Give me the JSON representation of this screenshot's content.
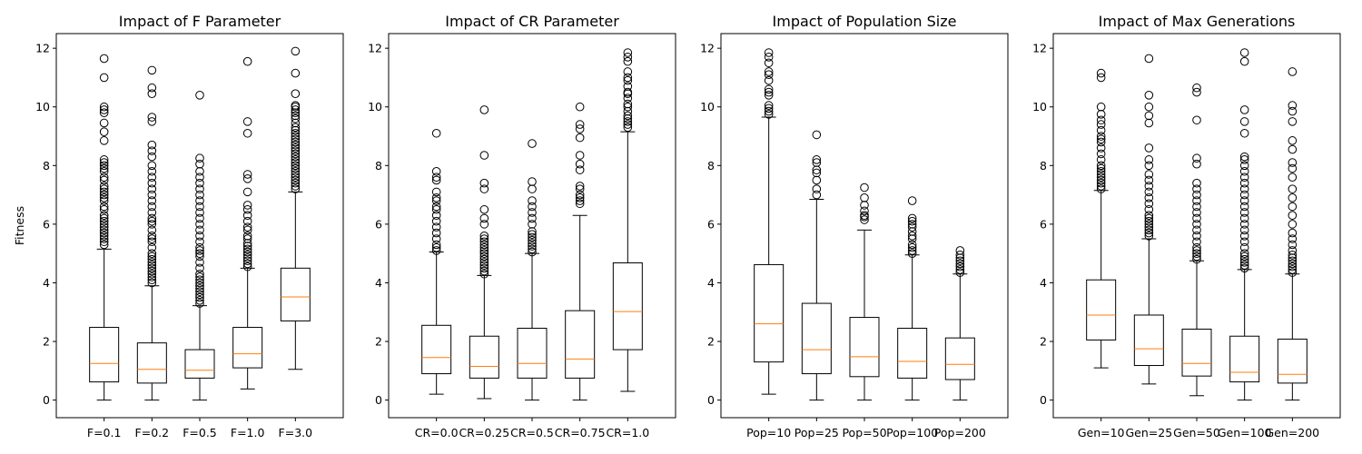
{
  "chart_data": [
    {
      "type": "boxplot",
      "title": "Impact of F Parameter",
      "ylabel": "Fitness",
      "ylim": [
        -0.6,
        12.5
      ],
      "yticks": [
        0,
        2,
        4,
        6,
        8,
        10,
        12
      ],
      "categories": [
        "F=0.1",
        "F=0.2",
        "F=0.5",
        "F=1.0",
        "F=3.0"
      ],
      "boxes": [
        {
          "min": 0.0,
          "q1": 0.62,
          "median": 1.25,
          "q3": 2.48,
          "max": 5.15,
          "outliers": [
            5.3,
            5.4,
            5.5,
            5.6,
            5.7,
            5.8,
            5.9,
            6.0,
            6.1,
            6.2,
            6.3,
            6.5,
            6.6,
            6.8,
            6.9,
            7.0,
            7.1,
            7.2,
            7.3,
            7.5,
            7.6,
            7.8,
            7.9,
            8.0,
            8.1,
            8.2,
            8.85,
            9.15,
            9.45,
            9.8,
            9.9,
            10.0,
            11.0,
            11.65
          ]
        },
        {
          "min": 0.0,
          "q1": 0.58,
          "median": 1.05,
          "q3": 1.95,
          "max": 3.9,
          "outliers": [
            4.0,
            4.1,
            4.2,
            4.3,
            4.4,
            4.5,
            4.6,
            4.7,
            4.8,
            4.9,
            5.0,
            5.2,
            5.4,
            5.5,
            5.6,
            5.8,
            6.0,
            6.1,
            6.2,
            6.4,
            6.6,
            6.8,
            7.0,
            7.2,
            7.4,
            7.6,
            7.8,
            8.0,
            8.3,
            8.5,
            8.7,
            9.5,
            9.65,
            10.45,
            10.65,
            11.25
          ]
        },
        {
          "min": 0.0,
          "q1": 0.75,
          "median": 1.02,
          "q3": 1.72,
          "max": 3.22,
          "outliers": [
            3.3,
            3.4,
            3.5,
            3.6,
            3.7,
            3.8,
            3.9,
            4.0,
            4.1,
            4.2,
            4.3,
            4.5,
            4.7,
            4.9,
            5.0,
            5.1,
            5.2,
            5.4,
            5.6,
            5.8,
            6.0,
            6.2,
            6.4,
            6.6,
            6.8,
            7.0,
            7.2,
            7.4,
            7.6,
            7.8,
            8.05,
            8.25,
            10.4
          ]
        },
        {
          "min": 0.38,
          "q1": 1.1,
          "median": 1.58,
          "q3": 2.48,
          "max": 4.5,
          "outliers": [
            4.55,
            4.65,
            4.75,
            4.85,
            4.95,
            5.05,
            5.15,
            5.25,
            5.35,
            5.5,
            5.6,
            5.8,
            5.9,
            6.1,
            6.3,
            6.5,
            6.65,
            7.1,
            7.55,
            7.7,
            9.1,
            9.5,
            11.55
          ]
        },
        {
          "min": 1.05,
          "q1": 2.7,
          "median": 3.52,
          "q3": 4.5,
          "max": 7.1,
          "outliers": [
            7.2,
            7.3,
            7.4,
            7.5,
            7.6,
            7.7,
            7.8,
            7.9,
            8.0,
            8.1,
            8.2,
            8.3,
            8.4,
            8.5,
            8.6,
            8.7,
            8.8,
            8.9,
            9.0,
            9.1,
            9.2,
            9.3,
            9.45,
            9.6,
            9.7,
            9.8,
            9.9,
            10.0,
            10.05,
            10.45,
            11.15,
            11.9
          ]
        }
      ]
    },
    {
      "type": "boxplot",
      "title": "Impact of CR Parameter",
      "ylabel": "",
      "ylim": [
        -0.6,
        12.5
      ],
      "yticks": [
        0,
        2,
        4,
        6,
        8,
        10,
        12
      ],
      "categories": [
        "CR=0.0",
        "CR=0.25",
        "CR=0.5",
        "CR=0.75",
        "CR=1.0"
      ],
      "boxes": [
        {
          "min": 0.2,
          "q1": 0.9,
          "median": 1.45,
          "q3": 2.55,
          "max": 5.05,
          "outliers": [
            5.1,
            5.2,
            5.3,
            5.5,
            5.7,
            5.9,
            6.1,
            6.3,
            6.5,
            6.6,
            6.8,
            6.9,
            7.1,
            7.5,
            7.6,
            7.8,
            9.1
          ]
        },
        {
          "min": 0.05,
          "q1": 0.75,
          "median": 1.15,
          "q3": 2.18,
          "max": 4.25,
          "outliers": [
            4.3,
            4.4,
            4.5,
            4.6,
            4.7,
            4.8,
            4.9,
            5.0,
            5.1,
            5.2,
            5.3,
            5.4,
            5.5,
            5.6,
            6.0,
            6.2,
            6.5,
            7.2,
            7.4,
            8.35,
            9.9
          ]
        },
        {
          "min": 0.0,
          "q1": 0.75,
          "median": 1.25,
          "q3": 2.45,
          "max": 5.0,
          "outliers": [
            5.05,
            5.15,
            5.25,
            5.35,
            5.45,
            5.55,
            5.65,
            5.75,
            6.0,
            6.2,
            6.4,
            6.6,
            6.8,
            7.2,
            7.45,
            8.75
          ]
        },
        {
          "min": 0.0,
          "q1": 0.75,
          "median": 1.4,
          "q3": 3.05,
          "max": 6.3,
          "outliers": [
            6.7,
            6.8,
            6.9,
            7.0,
            7.2,
            7.3,
            7.85,
            8.05,
            8.35,
            8.95,
            9.25,
            9.4,
            10.0
          ]
        },
        {
          "min": 0.3,
          "q1": 1.72,
          "median": 3.02,
          "q3": 4.68,
          "max": 9.15,
          "outliers": [
            9.3,
            9.4,
            9.5,
            9.6,
            9.7,
            9.85,
            10.0,
            10.1,
            10.3,
            10.45,
            10.5,
            10.7,
            10.9,
            11.0,
            11.2,
            11.55,
            11.7,
            11.85
          ]
        }
      ]
    },
    {
      "type": "boxplot",
      "title": "Impact of Population Size",
      "ylabel": "",
      "ylim": [
        -0.6,
        12.5
      ],
      "yticks": [
        0,
        2,
        4,
        6,
        8,
        10,
        12
      ],
      "categories": [
        "Pop=10",
        "Pop=25",
        "Pop=50",
        "Pop=100",
        "Pop=200"
      ],
      "boxes": [
        {
          "min": 0.2,
          "q1": 1.3,
          "median": 2.6,
          "q3": 4.62,
          "max": 9.65,
          "outliers": [
            9.75,
            9.85,
            9.95,
            10.05,
            10.4,
            10.5,
            10.6,
            10.9,
            11.1,
            11.2,
            11.5,
            11.7,
            11.85
          ]
        },
        {
          "min": 0.0,
          "q1": 0.9,
          "median": 1.72,
          "q3": 3.3,
          "max": 6.85,
          "outliers": [
            7.0,
            7.2,
            7.5,
            7.75,
            7.85,
            8.1,
            8.2,
            9.05
          ]
        },
        {
          "min": 0.0,
          "q1": 0.8,
          "median": 1.48,
          "q3": 2.82,
          "max": 5.8,
          "outliers": [
            6.15,
            6.25,
            6.3,
            6.45,
            6.65,
            6.9,
            7.25
          ]
        },
        {
          "min": 0.0,
          "q1": 0.75,
          "median": 1.32,
          "q3": 2.45,
          "max": 4.95,
          "outliers": [
            5.0,
            5.1,
            5.2,
            5.3,
            5.5,
            5.6,
            5.75,
            5.9,
            6.0,
            6.1,
            6.2,
            6.8
          ]
        },
        {
          "min": 0.0,
          "q1": 0.7,
          "median": 1.22,
          "q3": 2.12,
          "max": 4.3,
          "outliers": [
            4.35,
            4.45,
            4.55,
            4.65,
            4.75,
            4.85,
            4.95,
            5.1
          ]
        }
      ]
    },
    {
      "type": "boxplot",
      "title": "Impact of Max Generations",
      "ylabel": "",
      "ylim": [
        -0.6,
        12.5
      ],
      "yticks": [
        0,
        2,
        4,
        6,
        8,
        10,
        12
      ],
      "categories": [
        "Gen=10",
        "Gen=25",
        "Gen=50",
        "Gen=100",
        "Gen=200"
      ],
      "boxes": [
        {
          "min": 1.1,
          "q1": 2.05,
          "median": 2.9,
          "q3": 4.1,
          "max": 7.15,
          "outliers": [
            7.2,
            7.3,
            7.4,
            7.5,
            7.6,
            7.7,
            7.8,
            7.9,
            8.0,
            8.2,
            8.4,
            8.6,
            8.8,
            8.9,
            9.0,
            9.2,
            9.4,
            9.55,
            9.75,
            10.0,
            11.0,
            11.15
          ]
        },
        {
          "min": 0.55,
          "q1": 1.18,
          "median": 1.75,
          "q3": 2.9,
          "max": 5.5,
          "outliers": [
            5.6,
            5.7,
            5.8,
            5.9,
            6.0,
            6.1,
            6.2,
            6.3,
            6.5,
            6.7,
            6.9,
            7.1,
            7.3,
            7.5,
            7.7,
            8.0,
            8.2,
            8.6,
            9.45,
            9.7,
            10.0,
            10.4,
            11.65
          ]
        },
        {
          "min": 0.15,
          "q1": 0.82,
          "median": 1.25,
          "q3": 2.42,
          "max": 4.75,
          "outliers": [
            4.8,
            4.9,
            5.0,
            5.1,
            5.2,
            5.4,
            5.6,
            5.8,
            6.0,
            6.2,
            6.4,
            6.6,
            6.8,
            7.0,
            7.2,
            7.4,
            8.05,
            8.25,
            9.55,
            10.5,
            10.65
          ]
        },
        {
          "min": 0.0,
          "q1": 0.62,
          "median": 0.95,
          "q3": 2.18,
          "max": 4.45,
          "outliers": [
            4.5,
            4.6,
            4.7,
            4.8,
            4.9,
            5.0,
            5.2,
            5.4,
            5.6,
            5.8,
            6.0,
            6.2,
            6.4,
            6.6,
            6.8,
            7.0,
            7.2,
            7.4,
            7.6,
            7.8,
            8.0,
            8.2,
            8.3,
            9.1,
            9.5,
            9.9,
            11.55,
            11.85
          ]
        },
        {
          "min": 0.0,
          "q1": 0.58,
          "median": 0.88,
          "q3": 2.08,
          "max": 4.3,
          "outliers": [
            4.35,
            4.45,
            4.55,
            4.65,
            4.75,
            4.85,
            4.95,
            5.1,
            5.3,
            5.5,
            5.7,
            6.0,
            6.3,
            6.6,
            6.9,
            7.2,
            7.6,
            7.9,
            8.1,
            8.55,
            8.85,
            9.5,
            9.85,
            10.05,
            11.2
          ]
        }
      ]
    }
  ],
  "colors": {
    "box": "#000000",
    "median": "#ff7f0e",
    "background": "#ffffff"
  }
}
